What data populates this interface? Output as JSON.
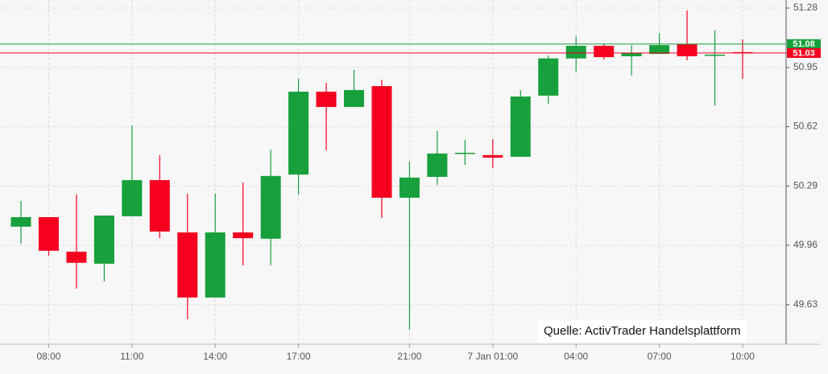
{
  "chart_data": {
    "type": "candlestick",
    "categories": [
      null,
      "08:00",
      null,
      null,
      "11:00",
      null,
      null,
      "14:00",
      null,
      null,
      "17:00",
      null,
      null,
      null,
      "21:00",
      null,
      null,
      "7 Jan 01:00",
      null,
      null,
      "04:00",
      null,
      null,
      "07:00",
      null,
      null,
      "10:00"
    ],
    "open": [
      50.064,
      50.117,
      49.925,
      49.858,
      50.122,
      50.323,
      50.032,
      49.67,
      50.032,
      49.997,
      50.354,
      50.815,
      50.73,
      50.846,
      50.225,
      50.341,
      50.471,
      50.462,
      50.453,
      50.793,
      51.0,
      51.07,
      51.012,
      51.025,
      51.079,
      51.016,
      51.035
    ],
    "high": [
      50.207,
      50.117,
      50.243,
      50.126,
      50.627,
      50.462,
      50.247,
      50.247,
      50.31,
      50.493,
      50.887,
      50.864,
      50.936,
      50.882,
      50.426,
      50.596,
      50.547,
      50.551,
      50.824,
      51.016,
      51.124,
      51.083,
      51.074,
      51.141,
      51.267,
      51.155,
      51.106
    ],
    "low": [
      49.97,
      49.903,
      49.719,
      49.76,
      50.122,
      50.0,
      49.55,
      49.67,
      49.849,
      49.849,
      50.243,
      50.489,
      50.73,
      50.113,
      49.491,
      50.296,
      50.408,
      50.39,
      50.453,
      50.748,
      50.927,
      50.994,
      50.905,
      51.025,
      50.989,
      50.739,
      50.887
    ],
    "close": [
      50.117,
      49.93,
      49.863,
      50.126,
      50.323,
      50.037,
      49.67,
      50.032,
      50.0,
      50.346,
      50.815,
      50.73,
      50.824,
      50.225,
      50.337,
      50.471,
      50.475,
      50.448,
      50.788,
      51.0,
      51.07,
      51.007,
      51.03,
      51.074,
      51.012,
      51.021,
      51.03
    ],
    "up_color": "#17a03b",
    "down_color": "#f5001f",
    "ylim": [
      49.41,
      51.325
    ],
    "yticks": [
      49.63,
      49.96,
      50.29,
      50.62,
      50.95,
      51.28
    ],
    "grid": true,
    "price_lines": [
      {
        "value": 51.08,
        "color": "#17a03b"
      },
      {
        "value": 51.03,
        "color": "#f5001f"
      }
    ],
    "annotation": "Quelle: ActivTrader Handelsplattform"
  }
}
